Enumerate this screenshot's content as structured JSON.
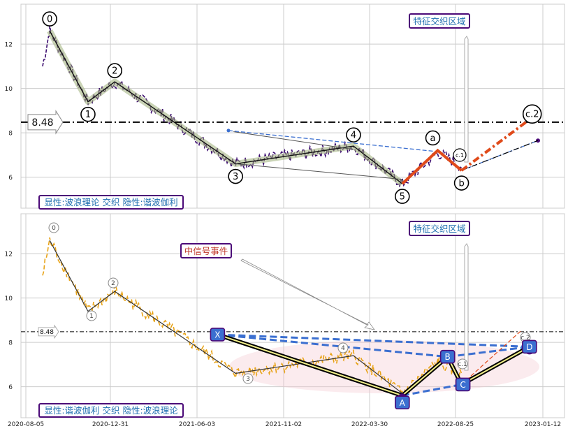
{
  "chart_data": [
    {
      "type": "line",
      "ylim": [
        4.6,
        13.8
      ],
      "yticks": [
        "6",
        "8",
        "10",
        "12"
      ],
      "legend_text": "显性:波浪理论 交织 隐性:谐波伽利",
      "title_box": "特征交织区域",
      "level_label": "8.48",
      "level_value": 8.48,
      "price_color": "#3a0a6e",
      "wave_points": [
        {
          "label": "0",
          "date": "2020-09-15",
          "value": 12.6
        },
        {
          "label": "1",
          "date": "2020-11-20",
          "value": 9.4
        },
        {
          "label": "2",
          "date": "2021-01-05",
          "value": 10.3
        },
        {
          "label": "3",
          "date": "2021-08-01",
          "value": 6.6
        },
        {
          "label": "4",
          "date": "2022-02-20",
          "value": 7.4
        },
        {
          "label": "5",
          "date": "2022-05-15",
          "value": 5.7
        }
      ],
      "abc_points": [
        {
          "label": "a",
          "date": "2022-07-15",
          "value": 7.2
        },
        {
          "label": "b",
          "date": "2022-08-25",
          "value": 6.3
        },
        {
          "label": "c.2",
          "date": "2022-12-15",
          "value": 8.5
        }
      ],
      "small_labels": [
        "c.1"
      ]
    },
    {
      "type": "line",
      "ylim": [
        4.6,
        13.8
      ],
      "yticks": [
        "6",
        "8",
        "10",
        "12"
      ],
      "legend_text": "显性:谐波伽利 交织 隐性:波浪理论",
      "title_box": "特征交织区域",
      "signal_box": "中信号事件",
      "level_label": "8.48",
      "level_value": 8.48,
      "price_color": "#e8a317",
      "wave_labels": [
        "0",
        "1",
        "2",
        "3",
        "4",
        "c.2",
        "c.1"
      ],
      "xabcd_points": [
        {
          "label": "X",
          "date": "2021-07-01",
          "value": 8.35
        },
        {
          "label": "A",
          "date": "2022-05-15",
          "value": 5.6
        },
        {
          "label": "B",
          "date": "2022-08-01",
          "value": 7.35
        },
        {
          "label": "C",
          "date": "2022-08-25",
          "value": 6.1
        },
        {
          "label": "D",
          "date": "2022-12-20",
          "value": 7.8
        }
      ]
    }
  ],
  "x_axis": {
    "start": "2020-08-05",
    "end": "2023-01-12",
    "ticks": [
      "2020-08-05",
      "2020-12-31",
      "2021-06-03",
      "2021-11-02",
      "2022-03-30",
      "2022-08-25",
      "2023-01-12"
    ]
  }
}
